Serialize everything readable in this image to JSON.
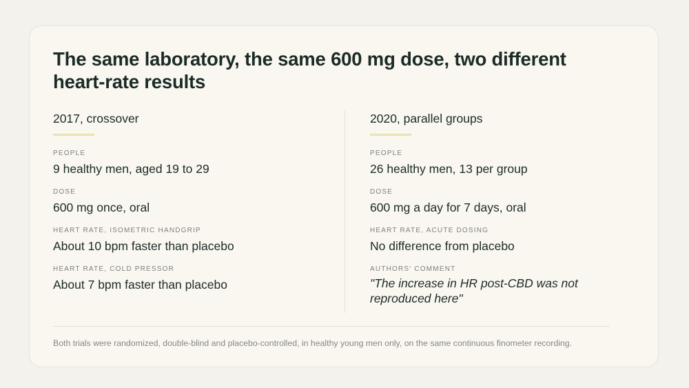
{
  "title": "The same laboratory, the same 600 mg dose, two different heart-rate results",
  "colors": {
    "background": "#f4f2ec",
    "card": "#faf7f1",
    "text": "#1b2b25",
    "muted": "#7c7f79",
    "accent_bar": "#e8e2b4"
  },
  "left": {
    "heading": "2017, crossover",
    "fields": [
      {
        "label": "PEOPLE",
        "value": "9 healthy men, aged 19 to 29"
      },
      {
        "label": "DOSE",
        "value": "600 mg once, oral"
      },
      {
        "label": "HEART RATE, ISOMETRIC HANDGRIP",
        "value": "About 10 bpm faster than placebo"
      },
      {
        "label": "HEART RATE, COLD PRESSOR",
        "value": "About 7 bpm faster than placebo"
      }
    ]
  },
  "right": {
    "heading": "2020, parallel groups",
    "fields": [
      {
        "label": "PEOPLE",
        "value": "26 healthy men, 13 per group"
      },
      {
        "label": "DOSE",
        "value": "600 mg a day for 7 days, oral"
      },
      {
        "label": "HEART RATE, ACUTE DOSING",
        "value": "No difference from placebo"
      },
      {
        "label": "AUTHORS' COMMENT",
        "value": "\"The increase in HR post-CBD was not reproduced here\""
      }
    ]
  },
  "footnote": "Both trials were randomized, double-blind and placebo-controlled, in healthy young men only, on the same continuous finometer recording."
}
